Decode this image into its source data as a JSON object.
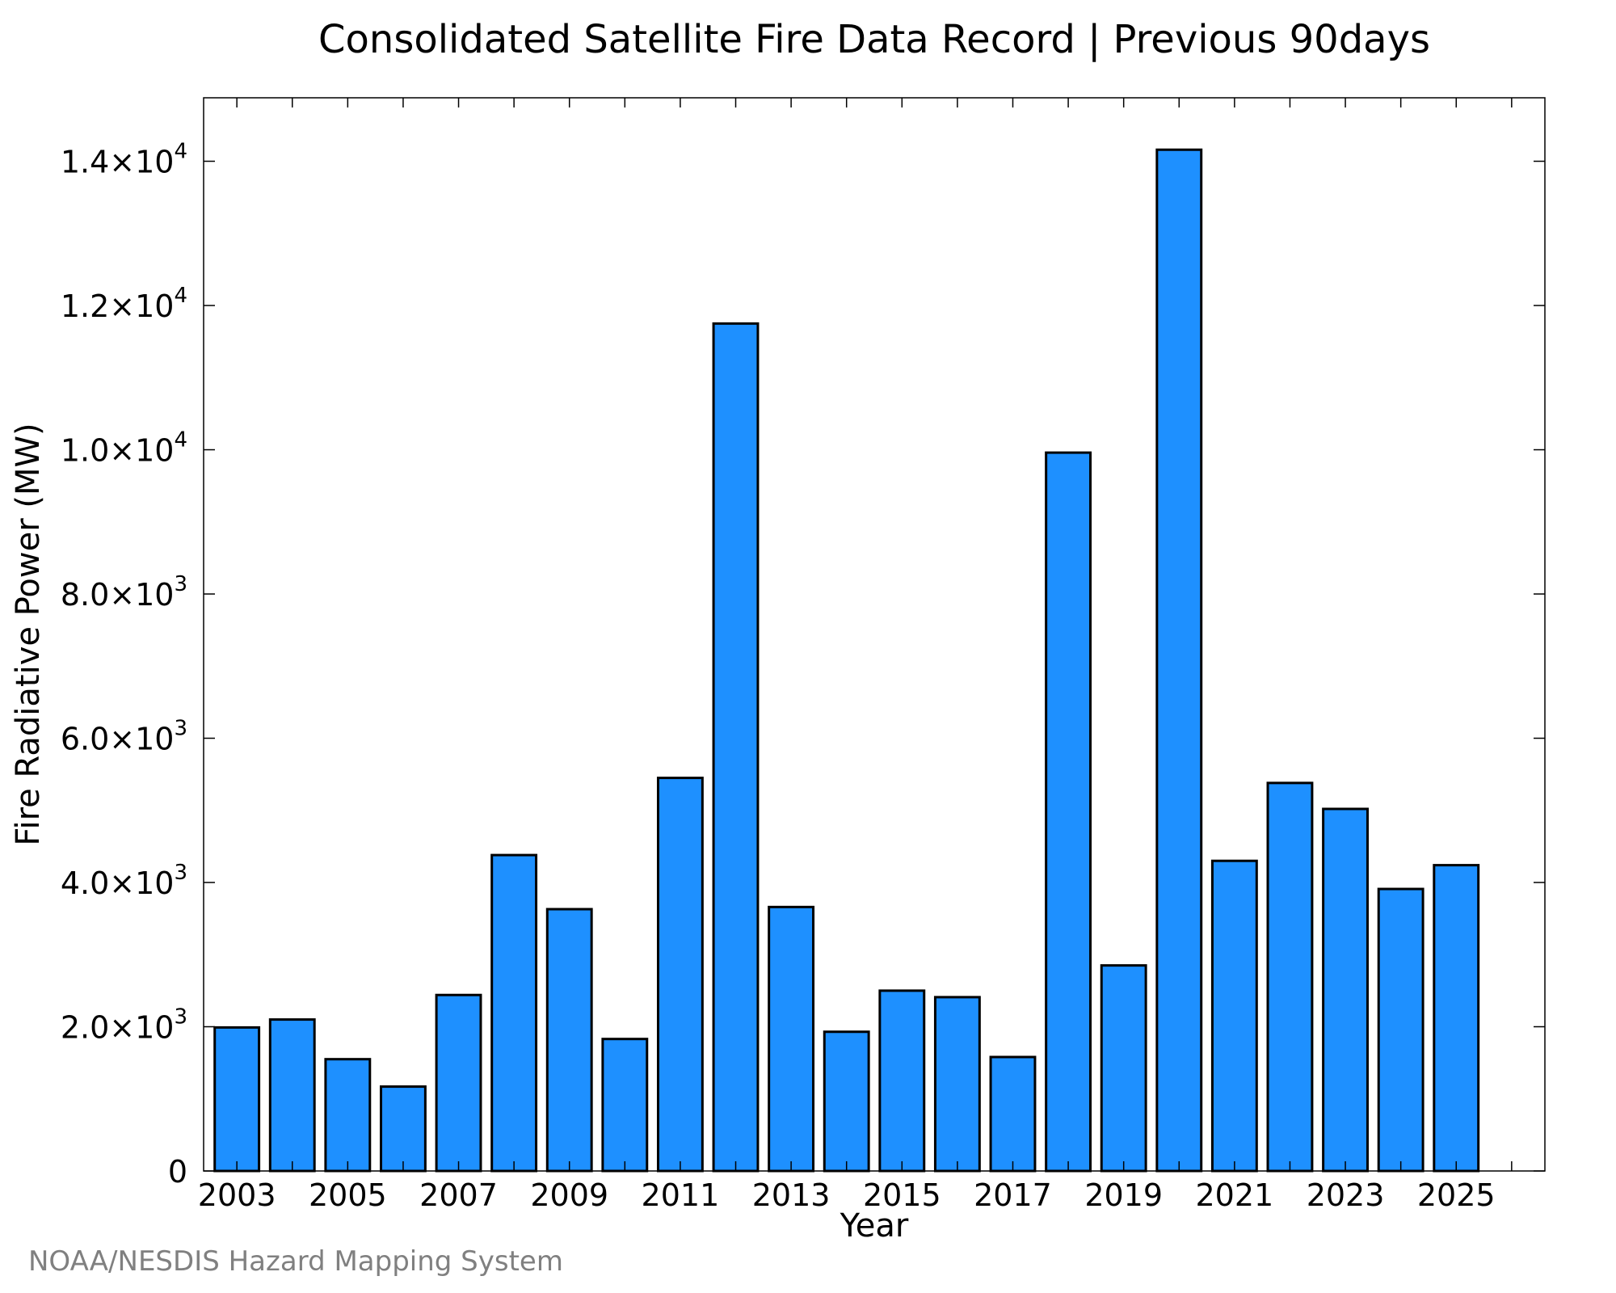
{
  "chart_data": {
    "type": "bar",
    "title": "Consolidated Satellite Fire Data Record | Previous 90days",
    "xlabel": "Year",
    "ylabel": "Fire Radiative Power (MW)",
    "categories": [
      "2003",
      "2004",
      "2005",
      "2006",
      "2007",
      "2008",
      "2009",
      "2010",
      "2011",
      "2012",
      "2013",
      "2014",
      "2015",
      "2016",
      "2017",
      "2018",
      "2019",
      "2020",
      "2021",
      "2022",
      "2023",
      "2024",
      "2025"
    ],
    "values": [
      1990,
      2100,
      1550,
      1170,
      2440,
      4380,
      3630,
      1830,
      5450,
      11750,
      3660,
      1930,
      2500,
      2410,
      1580,
      9960,
      2850,
      14160,
      4300,
      5380,
      5020,
      3910,
      4240
    ],
    "x_tick_labels": [
      "2003",
      "2005",
      "2007",
      "2009",
      "2011",
      "2013",
      "2015",
      "2017",
      "2019",
      "2021",
      "2023",
      "2025"
    ],
    "y_ticks": [
      {
        "value": 0,
        "mantissa": "0",
        "exponent": ""
      },
      {
        "value": 2000,
        "mantissa": "2.0×10",
        "exponent": "3"
      },
      {
        "value": 4000,
        "mantissa": "4.0×10",
        "exponent": "3"
      },
      {
        "value": 6000,
        "mantissa": "6.0×10",
        "exponent": "3"
      },
      {
        "value": 8000,
        "mantissa": "8.0×10",
        "exponent": "3"
      },
      {
        "value": 10000,
        "mantissa": "1.0×10",
        "exponent": "4"
      },
      {
        "value": 12000,
        "mantissa": "1.2×10",
        "exponent": "4"
      },
      {
        "value": 14000,
        "mantissa": "1.4×10",
        "exponent": "4"
      }
    ],
    "ylim": [
      0,
      14880
    ],
    "xlim": [
      2002.4,
      2026.6
    ],
    "bar_color": "#1e90ff",
    "bar_edge_color": "#000000",
    "grid": false,
    "legend": "none"
  },
  "credit": "NOAA/NESDIS Hazard Mapping System"
}
